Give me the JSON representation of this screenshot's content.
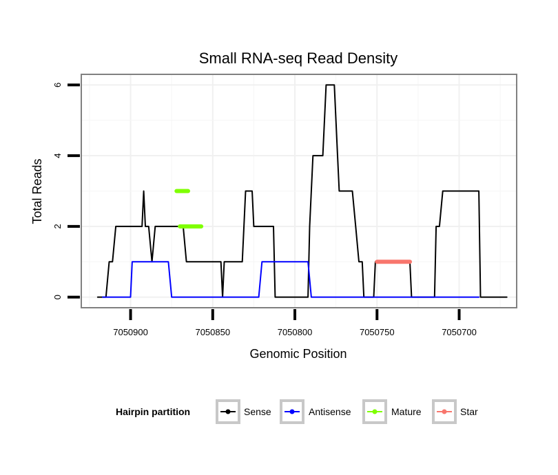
{
  "chart_data": {
    "type": "line",
    "title": "Small RNA-seq Read Density",
    "xlabel": "Genomic Position",
    "ylabel": "Total Reads",
    "xlim": [
      7050930,
      7050665
    ],
    "ylim": [
      -0.3,
      6.3
    ],
    "x_reversed": true,
    "x_ticks": [
      7050900,
      7050850,
      7050800,
      7050750,
      7050700
    ],
    "x_tick_labels": [
      "7050900",
      "7050850",
      "7050800",
      "7050750",
      "7050700"
    ],
    "y_ticks": [
      0,
      2,
      4,
      6
    ],
    "y_tick_labels": [
      "0",
      "2",
      "4",
      "6"
    ],
    "grid": true,
    "legend": {
      "title": "Hairpin partition",
      "position": "bottom",
      "entries": [
        "Sense",
        "Antisense",
        "Mature",
        "Star"
      ]
    },
    "series": [
      {
        "name": "Sense",
        "color": "#000000",
        "points": [
          [
            7050920,
            0
          ],
          [
            7050915,
            0
          ],
          [
            7050913,
            1
          ],
          [
            7050911,
            1
          ],
          [
            7050909,
            2
          ],
          [
            7050893,
            2
          ],
          [
            7050892,
            3
          ],
          [
            7050891,
            2
          ],
          [
            7050889,
            2
          ],
          [
            7050887,
            1
          ],
          [
            7050885,
            2
          ],
          [
            7050868,
            2
          ],
          [
            7050866,
            1
          ],
          [
            7050845,
            1
          ],
          [
            7050844,
            0
          ],
          [
            7050843,
            1
          ],
          [
            7050832,
            1
          ],
          [
            7050830,
            3
          ],
          [
            7050826,
            3
          ],
          [
            7050825,
            2
          ],
          [
            7050813,
            2
          ],
          [
            7050812,
            0
          ],
          [
            7050792,
            0
          ],
          [
            7050791,
            2
          ],
          [
            7050790,
            3
          ],
          [
            7050789,
            4
          ],
          [
            7050783,
            4
          ],
          [
            7050781,
            6
          ],
          [
            7050776,
            6
          ],
          [
            7050774,
            4
          ],
          [
            7050773,
            3
          ],
          [
            7050765,
            3
          ],
          [
            7050763,
            2
          ],
          [
            7050761,
            1
          ],
          [
            7050759,
            1
          ],
          [
            7050758,
            0
          ],
          [
            7050752,
            0
          ],
          [
            7050751,
            1
          ],
          [
            7050730,
            1
          ],
          [
            7050729,
            0
          ],
          [
            7050715,
            0
          ],
          [
            7050714,
            2
          ],
          [
            7050712,
            2
          ],
          [
            7050710,
            3
          ],
          [
            7050688,
            3
          ],
          [
            7050687,
            0
          ],
          [
            7050671,
            0
          ]
        ]
      },
      {
        "name": "Antisense",
        "color": "#0000ff",
        "points": [
          [
            7050917,
            0
          ],
          [
            7050900,
            0
          ],
          [
            7050899,
            1
          ],
          [
            7050877,
            1
          ],
          [
            7050875,
            0
          ],
          [
            7050822,
            0
          ],
          [
            7050820,
            1
          ],
          [
            7050792,
            1
          ],
          [
            7050790,
            0
          ],
          [
            7050688,
            0
          ]
        ]
      },
      {
        "name": "Mature",
        "color": "#7fff00",
        "points": [
          [
            7050865,
            3
          ],
          [
            7050872,
            3
          ]
        ],
        "points_b": [
          [
            7050857,
            2
          ],
          [
            7050870,
            2
          ]
        ]
      },
      {
        "name": "Star",
        "color": "#f8766d",
        "points": [
          [
            7050750,
            1
          ],
          [
            7050730,
            1
          ]
        ]
      }
    ]
  }
}
